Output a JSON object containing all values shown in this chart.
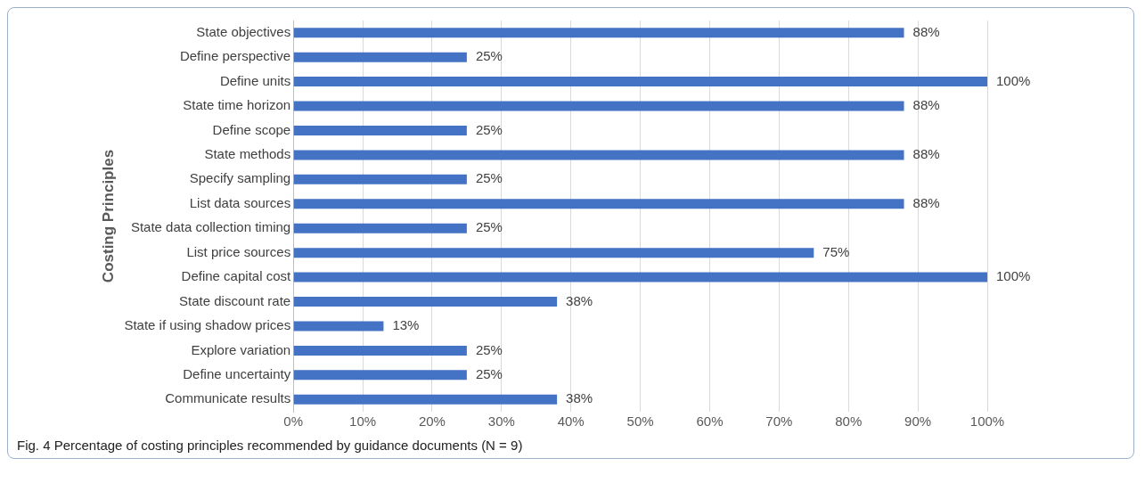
{
  "chart_data": {
    "type": "bar",
    "orientation": "horizontal",
    "ylabel": "Costing Principles",
    "annotations": [
      "Fig. 4 Percentage of costing principles recommended by guidance documents (N = 9)"
    ],
    "categories": [
      "State objectives",
      "Define perspective",
      "Define units",
      "State time horizon",
      "Define scope",
      "State methods",
      "Specify sampling",
      "List data sources",
      "State data collection timing",
      "List price sources",
      "Define capital cost",
      "State discount rate",
      "State if using shadow prices",
      "Explore variation",
      "Define uncertainty",
      "Communicate results"
    ],
    "values": [
      88,
      25,
      100,
      88,
      25,
      88,
      25,
      88,
      25,
      75,
      100,
      38,
      13,
      25,
      25,
      38
    ],
    "value_labels": [
      "88%",
      "25%",
      "100%",
      "88%",
      "25%",
      "88%",
      "25%",
      "88%",
      "25%",
      "75%",
      "100%",
      "38%",
      "13%",
      "25%",
      "25%",
      "38%"
    ],
    "color": "#4472c4",
    "xlim": [
      0,
      100
    ],
    "xticks": [
      {
        "value": 0,
        "label": "0%"
      },
      {
        "value": 10,
        "label": "10%"
      },
      {
        "value": 20,
        "label": "20%"
      },
      {
        "value": 30,
        "label": "30%"
      },
      {
        "value": 40,
        "label": "40%"
      },
      {
        "value": 50,
        "label": "50%"
      },
      {
        "value": 60,
        "label": "60%"
      },
      {
        "value": 70,
        "label": "70%"
      },
      {
        "value": 80,
        "label": "80%"
      },
      {
        "value": 90,
        "label": "90%"
      },
      {
        "value": 100,
        "label": "100%"
      }
    ],
    "grid": "x",
    "legend": false
  }
}
